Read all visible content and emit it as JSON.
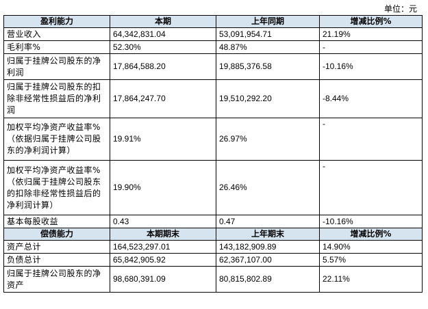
{
  "unit_label": "单位：元",
  "section1": {
    "headers": [
      "盈利能力",
      "本期",
      "上年同期",
      "增减比例%"
    ],
    "rows": [
      {
        "label": "营业收入",
        "current": "64,342,831.04",
        "prior": "53,091,954.71",
        "change": "21.19%"
      },
      {
        "label": "毛利率%",
        "current": "52.30%",
        "prior": "48.87%",
        "change": "-"
      },
      {
        "label": "归属于挂牌公司股东的净利润",
        "current": "17,864,588.20",
        "prior": "19,885,376.58",
        "change": "-10.16%"
      },
      {
        "label": "归属于挂牌公司股东的扣除非经常性损益后的净利润",
        "current": "17,864,247.70",
        "prior": "19,510,292.20",
        "change": "-8.44%"
      },
      {
        "label": "加权平均净资产收益率%（依据归属于挂牌公司股东的净利润计算）",
        "current": "19.91%",
        "prior": "26.97%",
        "change": "-"
      },
      {
        "label": "加权平均净资产收益率%（依归属于挂牌公司股东的扣除非经常性损益后的净利润计算）",
        "current": "19.90%",
        "prior": "26.46%",
        "change": "-"
      },
      {
        "label": "基本每股收益",
        "current": "0.43",
        "prior": "0.47",
        "change": "-10.16%"
      }
    ]
  },
  "section2": {
    "headers": [
      "偿债能力",
      "本期期末",
      "上年期末",
      "增减比例%"
    ],
    "rows": [
      {
        "label": "资产总计",
        "current": "164,523,297.01",
        "prior": "143,182,909.89",
        "change": "14.90%"
      },
      {
        "label": "负债总计",
        "current": "65,842,905.92",
        "prior": "62,367,107.00",
        "change": "5.57%"
      },
      {
        "label": "归属于挂牌公司股东的净资产",
        "current": "98,680,391.09",
        "prior": "80,815,802.89",
        "change": "22.11%"
      }
    ]
  }
}
